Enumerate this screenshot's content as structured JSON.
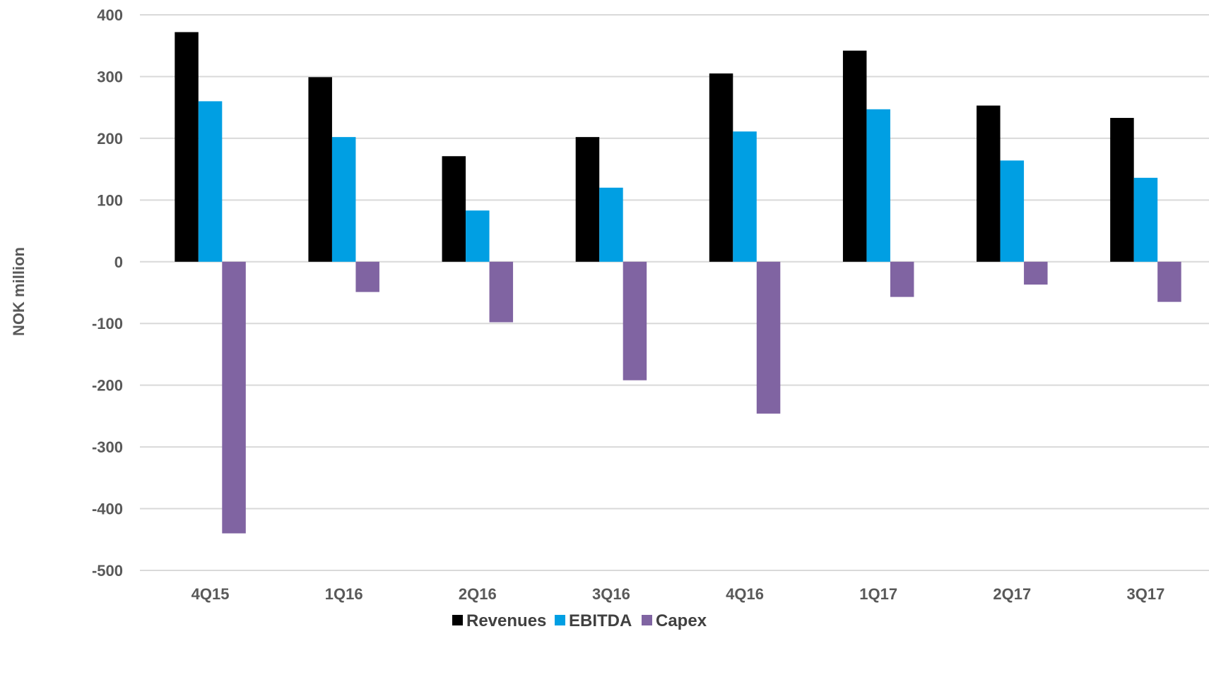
{
  "chart_data": {
    "type": "bar",
    "title": "",
    "xlabel": "",
    "ylabel": "NOK million",
    "ylim": [
      -500,
      400
    ],
    "ytick_step": 100,
    "grid": true,
    "legend_position": "bottom",
    "categories": [
      "4Q15",
      "1Q16",
      "2Q16",
      "3Q16",
      "4Q16",
      "1Q17",
      "2Q17",
      "3Q17"
    ],
    "series": [
      {
        "name": "Revenues",
        "color": "#000000",
        "values": [
          372,
          299,
          171,
          202,
          305,
          342,
          253,
          233
        ]
      },
      {
        "name": "EBITDA",
        "color": "#009fe3",
        "values": [
          260,
          202,
          83,
          120,
          211,
          247,
          164,
          136
        ]
      },
      {
        "name": "Capex",
        "color": "#8064a2",
        "values": [
          -440,
          -49,
          -98,
          -192,
          -246,
          -57,
          -37,
          -65
        ]
      }
    ]
  }
}
